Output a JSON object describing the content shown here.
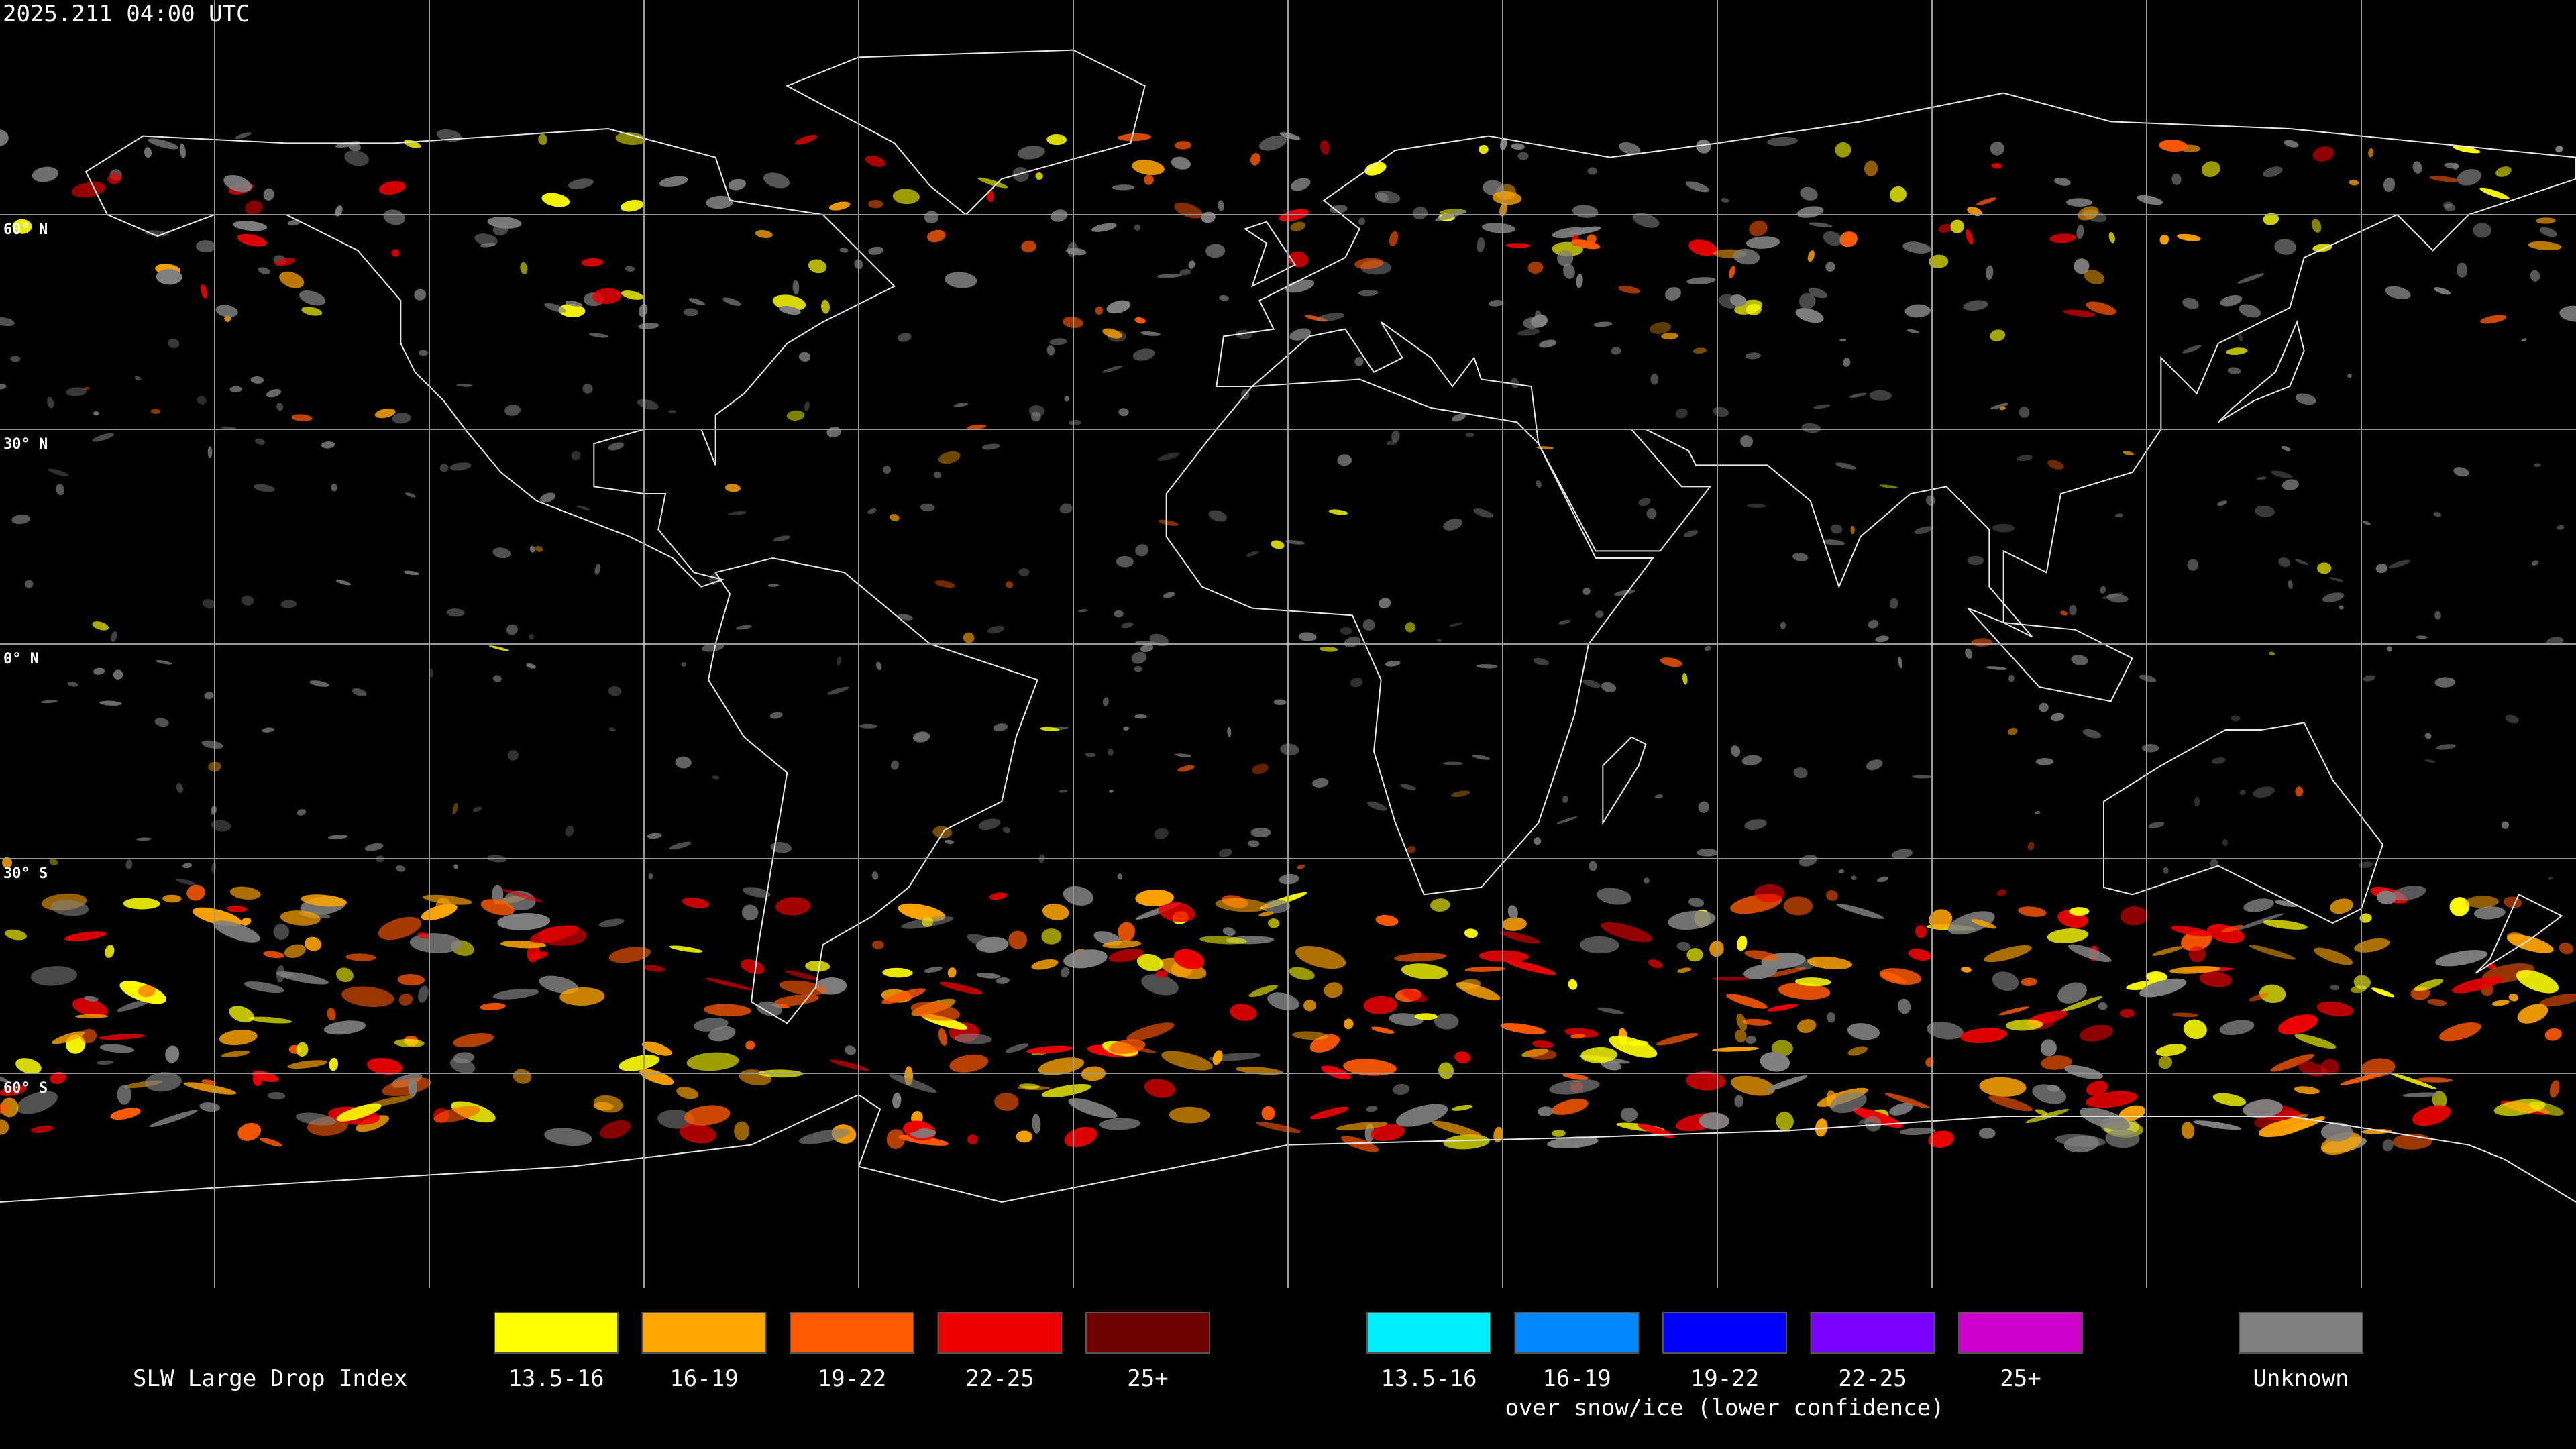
{
  "header": {
    "timestamp": "2025.211 04:00 UTC"
  },
  "map": {
    "latitude_labels": [
      "60° N",
      "30° N",
      "0° N",
      "30° S",
      "60° S"
    ]
  },
  "legend": {
    "title": "SLW Large Drop Index",
    "items": [
      {
        "label": "13.5-16",
        "color": "#ffff00"
      },
      {
        "label": "16-19",
        "color": "#ffa500"
      },
      {
        "label": "19-22",
        "color": "#ff5a00"
      },
      {
        "label": "22-25",
        "color": "#ee0000"
      },
      {
        "label": "25+",
        "color": "#6e0000"
      }
    ],
    "snow_items": [
      {
        "label": "13.5-16",
        "color": "#00eeff"
      },
      {
        "label": "16-19",
        "color": "#0088ff"
      },
      {
        "label": "19-22",
        "color": "#0000ff"
      },
      {
        "label": "22-25",
        "color": "#7a00ff"
      },
      {
        "label": "25+",
        "color": "#cc00cc"
      }
    ],
    "snow_caption": "over snow/ice (lower confidence)",
    "unknown": {
      "label": "Unknown",
      "color": "#808080"
    }
  }
}
